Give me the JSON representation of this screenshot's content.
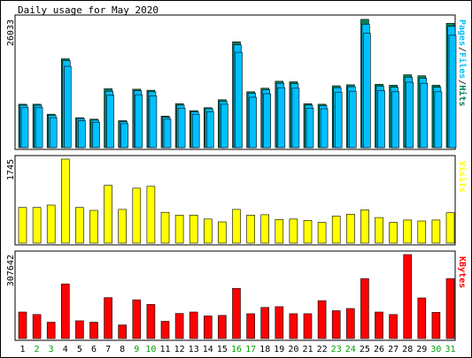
{
  "title": "Daily usage for May 2020",
  "days": [
    "1",
    "2",
    "3",
    "4",
    "5",
    "6",
    "7",
    "8",
    "9",
    "10",
    "11",
    "12",
    "13",
    "14",
    "15",
    "16",
    "17",
    "18",
    "19",
    "20",
    "21",
    "22",
    "23",
    "24",
    "25",
    "26",
    "27",
    "28",
    "29",
    "30",
    "31"
  ],
  "weekend_days": [
    "2",
    "3",
    "9",
    "10",
    "16",
    "17",
    "23",
    "24",
    "30",
    "31"
  ],
  "colors": {
    "hits": "#00805c",
    "files": "#00c0ff",
    "pages": "#00c0ff",
    "visits": "#ffff00",
    "kbytes": "#ff0000",
    "weekday_label": "#000000",
    "weekend_label": "#00a000",
    "panel_bg": "#ffffff",
    "axis": "#000000"
  },
  "chart_data": [
    {
      "type": "bar",
      "name": "pages-files-hits",
      "ylabel": "26033",
      "legend": [
        "Pages",
        "Files",
        "Hits"
      ],
      "legend_colors": [
        "#00c0ff",
        "#00c0ff",
        "#00805c"
      ],
      "ylim": [
        0,
        26033
      ],
      "categories": [
        "1",
        "2",
        "3",
        "4",
        "5",
        "6",
        "7",
        "8",
        "9",
        "10",
        "11",
        "12",
        "13",
        "14",
        "15",
        "16",
        "17",
        "18",
        "19",
        "20",
        "21",
        "22",
        "23",
        "24",
        "25",
        "26",
        "27",
        "28",
        "29",
        "30",
        "31"
      ],
      "series": [
        {
          "name": "Hits",
          "values": [
            8700,
            8700,
            6700,
            17800,
            6000,
            5700,
            11800,
            5400,
            11700,
            11500,
            6300,
            8800,
            7400,
            8000,
            9600,
            21200,
            11200,
            11900,
            13300,
            13200,
            8800,
            8700,
            12400,
            12600,
            25700,
            12700,
            12500,
            14600,
            14400,
            12500,
            24900
          ]
        },
        {
          "name": "Files",
          "values": [
            8500,
            8500,
            6500,
            17400,
            5800,
            5500,
            11300,
            5200,
            11400,
            11200,
            6100,
            8500,
            7200,
            7800,
            9300,
            20600,
            10900,
            11600,
            12900,
            12800,
            8500,
            8400,
            12000,
            12200,
            24700,
            12300,
            12100,
            14100,
            13900,
            12100,
            24300
          ]
        },
        {
          "name": "Pages",
          "values": [
            8000,
            8000,
            6000,
            16300,
            5400,
            5100,
            10500,
            4800,
            10600,
            10400,
            5700,
            7900,
            6700,
            7200,
            8700,
            19100,
            10100,
            10800,
            12000,
            11900,
            7900,
            7800,
            11100,
            11300,
            22900,
            11400,
            11200,
            13100,
            12900,
            11200,
            22500
          ]
        }
      ]
    },
    {
      "type": "bar",
      "name": "visits",
      "ylabel": "1745",
      "legend": [
        "Visits"
      ],
      "legend_colors": [
        "#ffff00"
      ],
      "ylim": [
        0,
        1745
      ],
      "categories": [
        "1",
        "2",
        "3",
        "4",
        "5",
        "6",
        "7",
        "8",
        "9",
        "10",
        "11",
        "12",
        "13",
        "14",
        "15",
        "16",
        "17",
        "18",
        "19",
        "20",
        "21",
        "22",
        "23",
        "24",
        "25",
        "26",
        "27",
        "28",
        "29",
        "30",
        "31"
      ],
      "series": [
        {
          "name": "Visits",
          "values": [
            740,
            740,
            790,
            1745,
            740,
            680,
            1200,
            700,
            1140,
            1180,
            640,
            580,
            580,
            500,
            440,
            700,
            580,
            590,
            490,
            500,
            470,
            430,
            560,
            600,
            690,
            530,
            430,
            480,
            460,
            480,
            630
          ]
        }
      ]
    },
    {
      "type": "bar",
      "name": "kbytes",
      "ylabel": "307642",
      "legend": [
        "KBytes"
      ],
      "legend_colors": [
        "#ff0000"
      ],
      "ylim": [
        0,
        307642
      ],
      "categories": [
        "1",
        "2",
        "3",
        "4",
        "5",
        "6",
        "7",
        "8",
        "9",
        "10",
        "11",
        "12",
        "13",
        "14",
        "15",
        "16",
        "17",
        "18",
        "19",
        "20",
        "21",
        "22",
        "23",
        "24",
        "25",
        "26",
        "27",
        "28",
        "29",
        "30",
        "31"
      ],
      "series": [
        {
          "name": "KBytes",
          "values": [
            97000,
            88000,
            60000,
            200000,
            65000,
            60000,
            150000,
            50000,
            142000,
            125000,
            63000,
            92000,
            97000,
            83000,
            85000,
            184000,
            91000,
            114000,
            117000,
            91000,
            91000,
            139000,
            102000,
            110000,
            220000,
            97000,
            88000,
            307642,
            149000,
            96000,
            220000
          ]
        }
      ]
    }
  ]
}
